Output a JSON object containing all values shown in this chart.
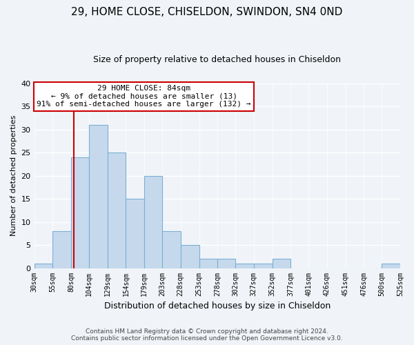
{
  "title": "29, HOME CLOSE, CHISELDON, SWINDON, SN4 0ND",
  "subtitle": "Size of property relative to detached houses in Chiseldon",
  "xlabel": "Distribution of detached houses by size in Chiseldon",
  "ylabel": "Number of detached properties",
  "bin_edges": [
    30,
    55,
    80,
    104,
    129,
    154,
    179,
    203,
    228,
    253,
    278,
    302,
    327,
    352,
    377,
    401,
    426,
    451,
    476,
    500,
    525
  ],
  "bar_heights": [
    1,
    8,
    24,
    31,
    25,
    15,
    20,
    8,
    5,
    2,
    2,
    1,
    1,
    2,
    0,
    0,
    0,
    0,
    0,
    1
  ],
  "bar_color": "#c6d9ec",
  "bar_edge_color": "#7bafd4",
  "vline_x": 84,
  "vline_color": "#cc0000",
  "ylim": [
    0,
    40
  ],
  "annotation_title": "29 HOME CLOSE: 84sqm",
  "annotation_line1": "← 9% of detached houses are smaller (13)",
  "annotation_line2": "91% of semi-detached houses are larger (132) →",
  "annotation_box_color": "#ffffff",
  "annotation_box_edge": "#cc0000",
  "tick_labels": [
    "30sqm",
    "55sqm",
    "80sqm",
    "104sqm",
    "129sqm",
    "154sqm",
    "179sqm",
    "203sqm",
    "228sqm",
    "253sqm",
    "278sqm",
    "302sqm",
    "327sqm",
    "352sqm",
    "377sqm",
    "401sqm",
    "426sqm",
    "451sqm",
    "476sqm",
    "500sqm",
    "525sqm"
  ],
  "footer_line1": "Contains HM Land Registry data © Crown copyright and database right 2024.",
  "footer_line2": "Contains public sector information licensed under the Open Government Licence v3.0.",
  "bg_color": "#f0f4f8",
  "grid_color": "#ffffff",
  "title_fontsize": 11,
  "subtitle_fontsize": 9,
  "ylabel_fontsize": 8,
  "xlabel_fontsize": 9,
  "tick_fontsize": 7,
  "annotation_fontsize": 8,
  "footer_fontsize": 6.5
}
